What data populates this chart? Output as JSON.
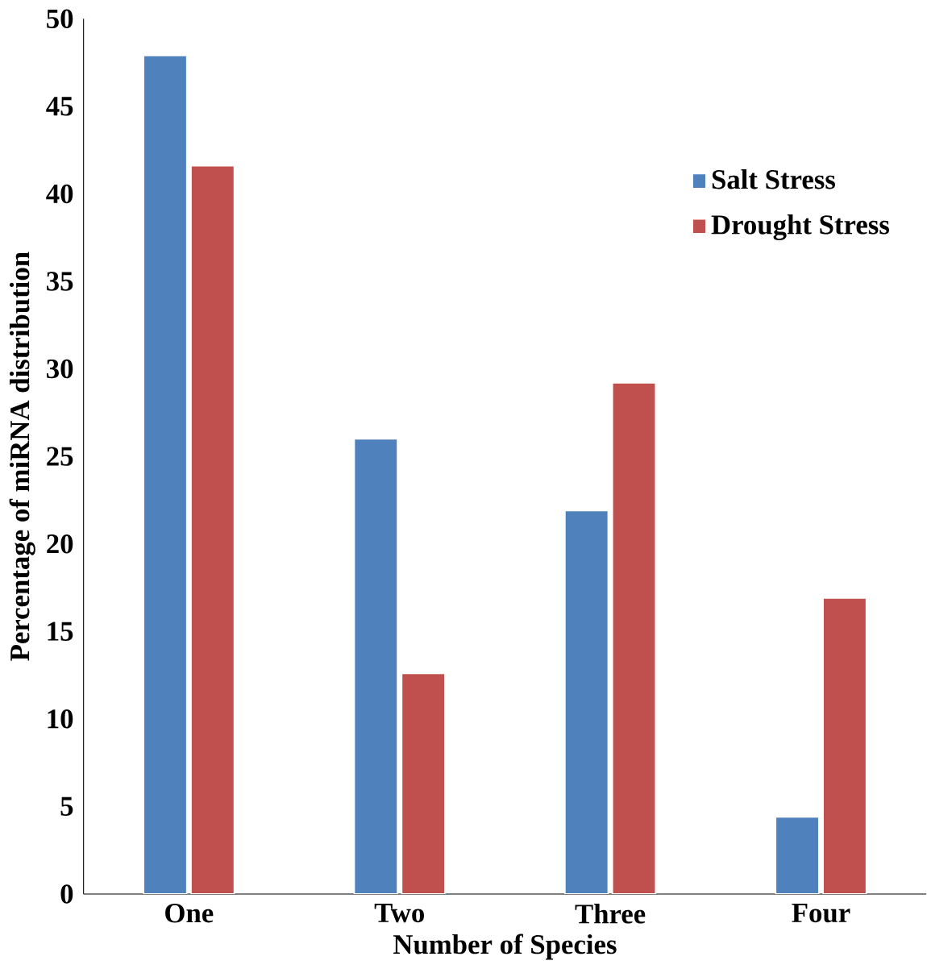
{
  "chart_data": {
    "type": "bar",
    "xlabel": "Number of Species",
    "ylabel": "Percentage of miRNA distribution",
    "categories": [
      "One",
      "Two",
      "Three",
      "Four"
    ],
    "series": [
      {
        "name": "Salt Stress",
        "color": "#4f81bd",
        "values": [
          47.9,
          26.0,
          21.9,
          4.4
        ]
      },
      {
        "name": "Drought Stress",
        "color": "#c0504d",
        "values": [
          41.6,
          12.6,
          29.2,
          16.9
        ]
      }
    ],
    "ylim": [
      0,
      50
    ],
    "yticks": [
      0,
      5,
      10,
      15,
      20,
      25,
      30,
      35,
      40,
      45,
      50
    ],
    "legend": "top right"
  }
}
